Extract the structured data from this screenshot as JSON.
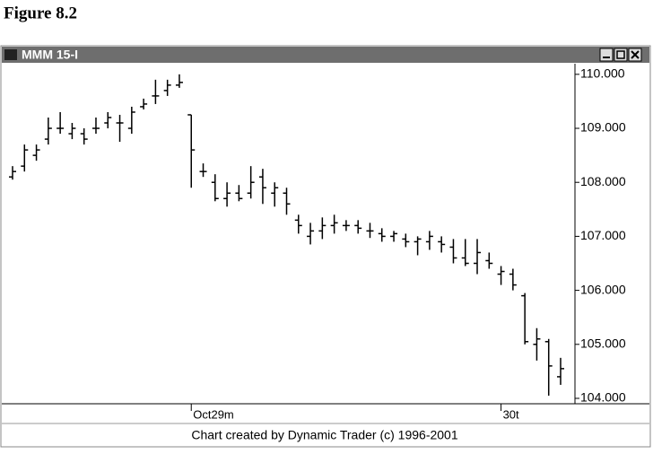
{
  "chart_data": {
    "type": "ohlc",
    "figure_label": "Figure 8.2",
    "title": "MMM 15-I",
    "caption": "Chart created by Dynamic Trader (c) 1996-2001",
    "color": "#000000",
    "ylim": [
      103.9,
      110.18
    ],
    "yticks": [
      {
        "value": 104,
        "label": "104.000"
      },
      {
        "value": 105,
        "label": "105.000"
      },
      {
        "value": 106,
        "label": "106.000"
      },
      {
        "value": 107,
        "label": "107.000"
      },
      {
        "value": 108,
        "label": "108.000"
      },
      {
        "value": 109,
        "label": "109.000"
      },
      {
        "value": 110,
        "label": "110.000"
      }
    ],
    "categories": [
      null,
      null,
      null,
      null,
      null,
      null,
      null,
      null,
      null,
      null,
      null,
      null,
      null,
      null,
      null,
      "Oct29m",
      null,
      null,
      null,
      null,
      null,
      null,
      null,
      null,
      null,
      null,
      null,
      null,
      null,
      null,
      null,
      null,
      null,
      null,
      null,
      null,
      null,
      null,
      null,
      null,
      null,
      "30t",
      null,
      null,
      null,
      null,
      null
    ],
    "open": [
      108.1,
      108.3,
      108.5,
      108.8,
      109.0,
      108.9,
      108.9,
      109.0,
      109.1,
      109.1,
      109.0,
      109.4,
      109.6,
      109.7,
      109.8,
      109.25,
      108.2,
      108.0,
      107.7,
      107.8,
      107.8,
      108.1,
      107.8,
      107.8,
      107.3,
      107.0,
      107.1,
      107.2,
      107.2,
      107.2,
      107.1,
      107.05,
      107.0,
      106.95,
      106.9,
      106.9,
      106.9,
      106.8,
      106.6,
      106.5,
      106.55,
      106.3,
      106.3,
      105.9,
      105.0,
      105.05,
      104.4
    ],
    "high": [
      108.3,
      108.7,
      108.7,
      109.2,
      109.3,
      109.1,
      109.0,
      109.2,
      109.3,
      109.25,
      109.4,
      109.55,
      109.9,
      109.9,
      110.0,
      109.25,
      108.35,
      108.15,
      108.0,
      107.95,
      108.3,
      108.25,
      108.0,
      107.9,
      107.4,
      107.25,
      107.35,
      107.4,
      107.3,
      107.3,
      107.25,
      107.15,
      107.1,
      107.05,
      107.0,
      107.1,
      107.0,
      106.95,
      106.95,
      106.95,
      106.7,
      106.45,
      106.4,
      105.95,
      105.3,
      105.1,
      104.75
    ],
    "low": [
      108.05,
      108.2,
      108.4,
      108.7,
      108.9,
      108.8,
      108.7,
      108.9,
      109.0,
      108.75,
      108.9,
      109.35,
      109.45,
      109.6,
      109.75,
      107.9,
      108.1,
      107.65,
      107.55,
      107.65,
      107.7,
      107.6,
      107.55,
      107.4,
      107.05,
      106.85,
      106.95,
      107.05,
      107.1,
      107.05,
      106.97,
      106.9,
      106.9,
      106.8,
      106.65,
      106.75,
      106.7,
      106.5,
      106.45,
      106.3,
      106.4,
      106.1,
      106.0,
      105.0,
      104.7,
      104.05,
      104.25
    ],
    "close": [
      108.2,
      108.6,
      108.6,
      109.0,
      109.0,
      109.0,
      108.8,
      109.0,
      109.2,
      109.1,
      109.3,
      109.45,
      109.6,
      109.8,
      109.85,
      108.6,
      108.2,
      107.7,
      107.8,
      107.7,
      108.0,
      107.9,
      107.9,
      107.6,
      107.2,
      107.1,
      107.2,
      107.25,
      107.2,
      107.15,
      107.1,
      107.0,
      107.05,
      106.9,
      106.95,
      107.0,
      106.85,
      106.6,
      106.5,
      106.7,
      106.5,
      106.35,
      106.1,
      105.05,
      105.1,
      104.6,
      104.55
    ]
  }
}
